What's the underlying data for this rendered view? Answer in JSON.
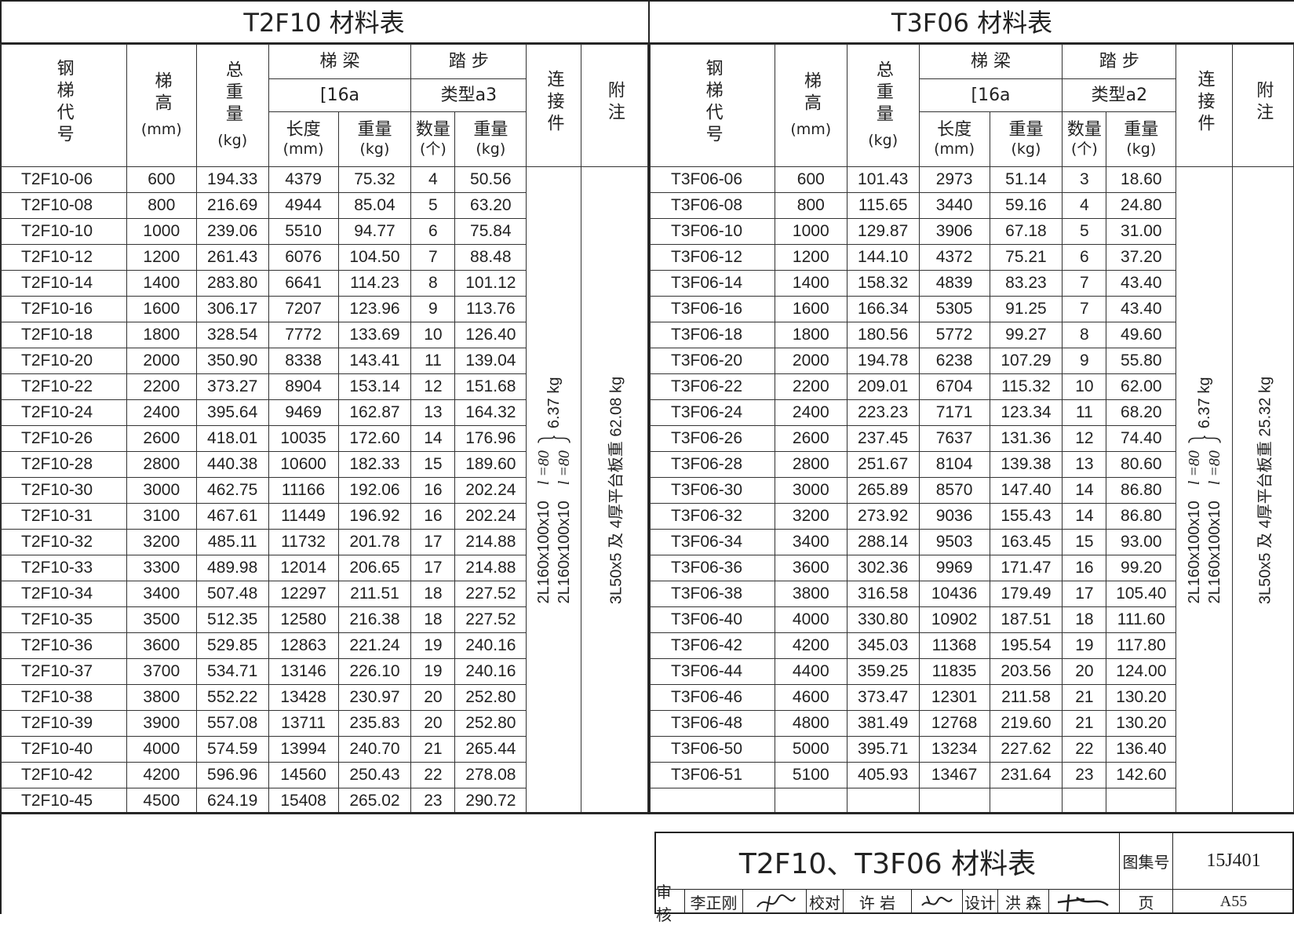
{
  "tables": [
    {
      "title": "T2F10 材料表",
      "headers": {
        "code": "钢梯代号",
        "height": "梯高",
        "height_unit": "(mm)",
        "total": "总重量",
        "total_unit": "(kg)",
        "beam": "梯 梁",
        "beam_spec": "[16a",
        "step": "踏 步",
        "step_type": "类型a3",
        "len": "长度",
        "len_unit": "(mm)",
        "wt": "重量",
        "wt_unit": "(kg)",
        "count": "数量",
        "count_unit": "(个)",
        "swt": "重量",
        "swt_unit": "(kg)",
        "conn": "连接件",
        "note": "附注"
      },
      "rows": [
        [
          "T2F10-06",
          "600",
          "194.33",
          "4379",
          "75.32",
          "4",
          "50.56"
        ],
        [
          "T2F10-08",
          "800",
          "216.69",
          "4944",
          "85.04",
          "5",
          "63.20"
        ],
        [
          "T2F10-10",
          "1000",
          "239.06",
          "5510",
          "94.77",
          "6",
          "75.84"
        ],
        [
          "T2F10-12",
          "1200",
          "261.43",
          "6076",
          "104.50",
          "7",
          "88.48"
        ],
        [
          "T2F10-14",
          "1400",
          "283.80",
          "6641",
          "114.23",
          "8",
          "101.12"
        ],
        [
          "T2F10-16",
          "1600",
          "306.17",
          "7207",
          "123.96",
          "9",
          "113.76"
        ],
        [
          "T2F10-18",
          "1800",
          "328.54",
          "7772",
          "133.69",
          "10",
          "126.40"
        ],
        [
          "T2F10-20",
          "2000",
          "350.90",
          "8338",
          "143.41",
          "11",
          "139.04"
        ],
        [
          "T2F10-22",
          "2200",
          "373.27",
          "8904",
          "153.14",
          "12",
          "151.68"
        ],
        [
          "T2F10-24",
          "2400",
          "395.64",
          "9469",
          "162.87",
          "13",
          "164.32"
        ],
        [
          "T2F10-26",
          "2600",
          "418.01",
          "10035",
          "172.60",
          "14",
          "176.96"
        ],
        [
          "T2F10-28",
          "2800",
          "440.38",
          "10600",
          "182.33",
          "15",
          "189.60"
        ],
        [
          "T2F10-30",
          "3000",
          "462.75",
          "11166",
          "192.06",
          "16",
          "202.24"
        ],
        [
          "T2F10-31",
          "3100",
          "467.61",
          "11449",
          "196.92",
          "16",
          "202.24"
        ],
        [
          "T2F10-32",
          "3200",
          "485.11",
          "11732",
          "201.78",
          "17",
          "214.88"
        ],
        [
          "T2F10-33",
          "3300",
          "489.98",
          "12014",
          "206.65",
          "17",
          "214.88"
        ],
        [
          "T2F10-34",
          "3400",
          "507.48",
          "12297",
          "211.51",
          "18",
          "227.52"
        ],
        [
          "T2F10-35",
          "3500",
          "512.35",
          "12580",
          "216.38",
          "18",
          "227.52"
        ],
        [
          "T2F10-36",
          "3600",
          "529.85",
          "12863",
          "221.24",
          "19",
          "240.16"
        ],
        [
          "T2F10-37",
          "3700",
          "534.71",
          "13146",
          "226.10",
          "19",
          "240.16"
        ],
        [
          "T2F10-38",
          "3800",
          "552.22",
          "13428",
          "230.97",
          "20",
          "252.80"
        ],
        [
          "T2F10-39",
          "3900",
          "557.08",
          "13711",
          "235.83",
          "20",
          "252.80"
        ],
        [
          "T2F10-40",
          "4000",
          "574.59",
          "13994",
          "240.70",
          "21",
          "265.44"
        ],
        [
          "T2F10-42",
          "4200",
          "596.96",
          "14560",
          "250.43",
          "22",
          "278.08"
        ],
        [
          "T2F10-45",
          "4500",
          "624.19",
          "15408",
          "265.02",
          "23",
          "290.72"
        ]
      ],
      "connector": {
        "spec1": "2L160x100x10",
        "len1": "l =80",
        "spec2": "2L160x100x10",
        "len2": "l =80",
        "weight": "6.37 kg"
      },
      "note": "3L50x5 及 4厚平台板重 62.08 kg"
    },
    {
      "title": "T3F06 材料表",
      "headers": {
        "code": "钢梯代号",
        "height": "梯高",
        "height_unit": "(mm)",
        "total": "总重量",
        "total_unit": "(kg)",
        "beam": "梯 梁",
        "beam_spec": "[16a",
        "step": "踏 步",
        "step_type": "类型a2",
        "len": "长度",
        "len_unit": "(mm)",
        "wt": "重量",
        "wt_unit": "(kg)",
        "count": "数量",
        "count_unit": "(个)",
        "swt": "重量",
        "swt_unit": "(kg)",
        "conn": "连接件",
        "note": "附注"
      },
      "rows": [
        [
          "T3F06-06",
          "600",
          "101.43",
          "2973",
          "51.14",
          "3",
          "18.60"
        ],
        [
          "T3F06-08",
          "800",
          "115.65",
          "3440",
          "59.16",
          "4",
          "24.80"
        ],
        [
          "T3F06-10",
          "1000",
          "129.87",
          "3906",
          "67.18",
          "5",
          "31.00"
        ],
        [
          "T3F06-12",
          "1200",
          "144.10",
          "4372",
          "75.21",
          "6",
          "37.20"
        ],
        [
          "T3F06-14",
          "1400",
          "158.32",
          "4839",
          "83.23",
          "7",
          "43.40"
        ],
        [
          "T3F06-16",
          "1600",
          "166.34",
          "5305",
          "91.25",
          "7",
          "43.40"
        ],
        [
          "T3F06-18",
          "1800",
          "180.56",
          "5772",
          "99.27",
          "8",
          "49.60"
        ],
        [
          "T3F06-20",
          "2000",
          "194.78",
          "6238",
          "107.29",
          "9",
          "55.80"
        ],
        [
          "T3F06-22",
          "2200",
          "209.01",
          "6704",
          "115.32",
          "10",
          "62.00"
        ],
        [
          "T3F06-24",
          "2400",
          "223.23",
          "7171",
          "123.34",
          "11",
          "68.20"
        ],
        [
          "T3F06-26",
          "2600",
          "237.45",
          "7637",
          "131.36",
          "12",
          "74.40"
        ],
        [
          "T3F06-28",
          "2800",
          "251.67",
          "8104",
          "139.38",
          "13",
          "80.60"
        ],
        [
          "T3F06-30",
          "3000",
          "265.89",
          "8570",
          "147.40",
          "14",
          "86.80"
        ],
        [
          "T3F06-32",
          "3200",
          "273.92",
          "9036",
          "155.43",
          "14",
          "86.80"
        ],
        [
          "T3F06-34",
          "3400",
          "288.14",
          "9503",
          "163.45",
          "15",
          "93.00"
        ],
        [
          "T3F06-36",
          "3600",
          "302.36",
          "9969",
          "171.47",
          "16",
          "99.20"
        ],
        [
          "T3F06-38",
          "3800",
          "316.58",
          "10436",
          "179.49",
          "17",
          "105.40"
        ],
        [
          "T3F06-40",
          "4000",
          "330.80",
          "10902",
          "187.51",
          "18",
          "111.60"
        ],
        [
          "T3F06-42",
          "4200",
          "345.03",
          "11368",
          "195.54",
          "19",
          "117.80"
        ],
        [
          "T3F06-44",
          "4400",
          "359.25",
          "11835",
          "203.56",
          "20",
          "124.00"
        ],
        [
          "T3F06-46",
          "4600",
          "373.47",
          "12301",
          "211.58",
          "21",
          "130.20"
        ],
        [
          "T3F06-48",
          "4800",
          "381.49",
          "12768",
          "219.60",
          "21",
          "130.20"
        ],
        [
          "T3F06-50",
          "5000",
          "395.71",
          "13234",
          "227.62",
          "22",
          "136.40"
        ],
        [
          "T3F06-51",
          "5100",
          "405.93",
          "13467",
          "231.64",
          "23",
          "142.60"
        ]
      ],
      "connector": {
        "spec1": "2L160x100x10",
        "len1": "l =80",
        "spec2": "2L160x100x10",
        "len2": "l =80",
        "weight": "6.37 kg"
      },
      "note": "3L50x5 及 4厚平台板重 25.32 kg"
    }
  ],
  "title_block": {
    "title": "T2F10、T3F06 材料表",
    "atlas_label": "图集号",
    "atlas_no": "15J401",
    "review_label": "审核",
    "review_name": "李正刚",
    "check_label": "校对",
    "check_name": "许 岩",
    "design_label": "设计",
    "design_name": "洪 森",
    "page_label": "页",
    "page_no": "A55"
  }
}
